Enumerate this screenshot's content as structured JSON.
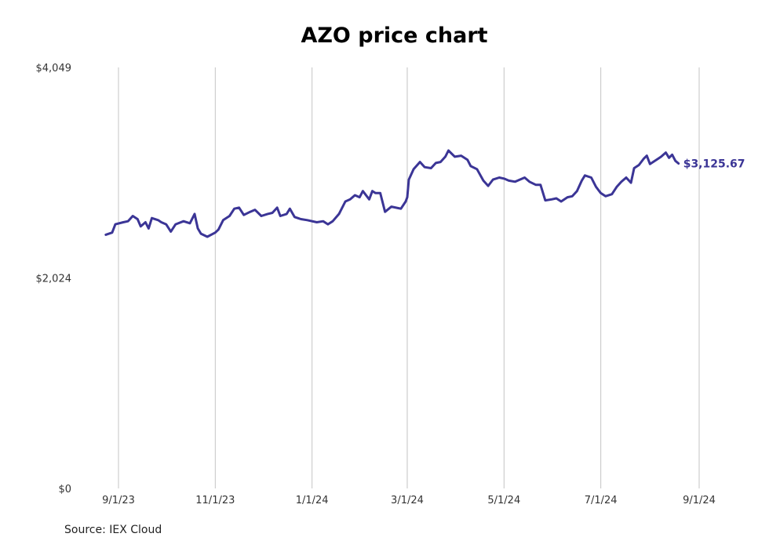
{
  "chart_data": {
    "type": "line",
    "title": "AZO price chart",
    "source": "Source: IEX Cloud",
    "ylim": [
      0,
      4049
    ],
    "y_ticks": [
      {
        "value": 0,
        "label": "$0"
      },
      {
        "value": 2024,
        "label": "$2,024"
      },
      {
        "value": 4049,
        "label": "$4,049"
      }
    ],
    "x_ticks": [
      {
        "date": "2023-09-01",
        "label": "9/1/23"
      },
      {
        "date": "2023-11-01",
        "label": "11/1/23"
      },
      {
        "date": "2024-01-01",
        "label": "1/1/24"
      },
      {
        "date": "2024-03-01",
        "label": "3/1/24"
      },
      {
        "date": "2024-05-01",
        "label": "5/1/24"
      },
      {
        "date": "2024-07-01",
        "label": "7/1/24"
      },
      {
        "date": "2024-09-01",
        "label": "9/1/24"
      }
    ],
    "grid": "vertical",
    "line_color": "#3b3596",
    "last_value_label": "$3,125.67",
    "series": [
      {
        "points": [
          [
            "2023-08-24",
            2440
          ],
          [
            "2023-08-28",
            2460
          ],
          [
            "2023-08-30",
            2540
          ],
          [
            "2023-09-04",
            2560
          ],
          [
            "2023-09-07",
            2570
          ],
          [
            "2023-09-10",
            2620
          ],
          [
            "2023-09-13",
            2590
          ],
          [
            "2023-09-15",
            2520
          ],
          [
            "2023-09-18",
            2560
          ],
          [
            "2023-09-20",
            2500
          ],
          [
            "2023-09-22",
            2600
          ],
          [
            "2023-09-26",
            2580
          ],
          [
            "2023-09-28",
            2560
          ],
          [
            "2023-10-01",
            2540
          ],
          [
            "2023-10-04",
            2470
          ],
          [
            "2023-10-07",
            2540
          ],
          [
            "2023-10-12",
            2570
          ],
          [
            "2023-10-16",
            2550
          ],
          [
            "2023-10-19",
            2640
          ],
          [
            "2023-10-21",
            2500
          ],
          [
            "2023-10-23",
            2450
          ],
          [
            "2023-10-27",
            2420
          ],
          [
            "2023-11-01",
            2460
          ],
          [
            "2023-11-03",
            2490
          ],
          [
            "2023-11-06",
            2580
          ],
          [
            "2023-11-10",
            2620
          ],
          [
            "2023-11-13",
            2690
          ],
          [
            "2023-11-16",
            2700
          ],
          [
            "2023-11-19",
            2630
          ],
          [
            "2023-11-23",
            2660
          ],
          [
            "2023-11-26",
            2680
          ],
          [
            "2023-11-30",
            2620
          ],
          [
            "2023-12-04",
            2640
          ],
          [
            "2023-12-07",
            2650
          ],
          [
            "2023-12-10",
            2700
          ],
          [
            "2023-12-12",
            2620
          ],
          [
            "2023-12-16",
            2640
          ],
          [
            "2023-12-18",
            2690
          ],
          [
            "2023-12-21",
            2610
          ],
          [
            "2023-12-25",
            2590
          ],
          [
            "2023-12-29",
            2580
          ],
          [
            "2024-01-04",
            2560
          ],
          [
            "2024-01-08",
            2570
          ],
          [
            "2024-01-11",
            2540
          ],
          [
            "2024-01-14",
            2570
          ],
          [
            "2024-01-18",
            2640
          ],
          [
            "2024-01-22",
            2760
          ],
          [
            "2024-01-25",
            2780
          ],
          [
            "2024-01-28",
            2820
          ],
          [
            "2024-01-31",
            2800
          ],
          [
            "2024-02-02",
            2860
          ],
          [
            "2024-02-06",
            2780
          ],
          [
            "2024-02-08",
            2860
          ],
          [
            "2024-02-10",
            2840
          ],
          [
            "2024-02-13",
            2840
          ],
          [
            "2024-02-16",
            2660
          ],
          [
            "2024-02-20",
            2710
          ],
          [
            "2024-02-26",
            2690
          ],
          [
            "2024-02-29",
            2760
          ],
          [
            "2024-03-01",
            2800
          ],
          [
            "2024-03-02",
            2970
          ],
          [
            "2024-03-05",
            3070
          ],
          [
            "2024-03-09",
            3140
          ],
          [
            "2024-03-12",
            3090
          ],
          [
            "2024-03-16",
            3080
          ],
          [
            "2024-03-19",
            3130
          ],
          [
            "2024-03-22",
            3140
          ],
          [
            "2024-03-25",
            3190
          ],
          [
            "2024-03-27",
            3250
          ],
          [
            "2024-03-31",
            3190
          ],
          [
            "2024-04-04",
            3200
          ],
          [
            "2024-04-08",
            3160
          ],
          [
            "2024-04-10",
            3100
          ],
          [
            "2024-04-14",
            3070
          ],
          [
            "2024-04-18",
            2960
          ],
          [
            "2024-04-21",
            2910
          ],
          [
            "2024-04-24",
            2970
          ],
          [
            "2024-04-28",
            2990
          ],
          [
            "2024-05-01",
            2980
          ],
          [
            "2024-05-04",
            2960
          ],
          [
            "2024-05-08",
            2950
          ],
          [
            "2024-05-11",
            2970
          ],
          [
            "2024-05-14",
            2990
          ],
          [
            "2024-05-17",
            2950
          ],
          [
            "2024-05-21",
            2920
          ],
          [
            "2024-05-24",
            2920
          ],
          [
            "2024-05-27",
            2770
          ],
          [
            "2024-05-31",
            2780
          ],
          [
            "2024-06-03",
            2790
          ],
          [
            "2024-06-06",
            2760
          ],
          [
            "2024-06-10",
            2800
          ],
          [
            "2024-06-13",
            2810
          ],
          [
            "2024-06-16",
            2860
          ],
          [
            "2024-06-19",
            2960
          ],
          [
            "2024-06-21",
            3010
          ],
          [
            "2024-06-25",
            2990
          ],
          [
            "2024-06-28",
            2900
          ],
          [
            "2024-07-01",
            2840
          ],
          [
            "2024-07-04",
            2810
          ],
          [
            "2024-07-08",
            2830
          ],
          [
            "2024-07-11",
            2900
          ],
          [
            "2024-07-14",
            2950
          ],
          [
            "2024-07-17",
            2990
          ],
          [
            "2024-07-20",
            2940
          ],
          [
            "2024-07-22",
            3080
          ],
          [
            "2024-07-25",
            3110
          ],
          [
            "2024-07-28",
            3170
          ],
          [
            "2024-07-30",
            3200
          ],
          [
            "2024-08-01",
            3120
          ],
          [
            "2024-08-04",
            3150
          ],
          [
            "2024-08-06",
            3170
          ],
          [
            "2024-08-08",
            3190
          ],
          [
            "2024-08-11",
            3230
          ],
          [
            "2024-08-13",
            3180
          ],
          [
            "2024-08-15",
            3210
          ],
          [
            "2024-08-17",
            3150
          ],
          [
            "2024-08-19",
            3125.67
          ]
        ]
      }
    ]
  }
}
